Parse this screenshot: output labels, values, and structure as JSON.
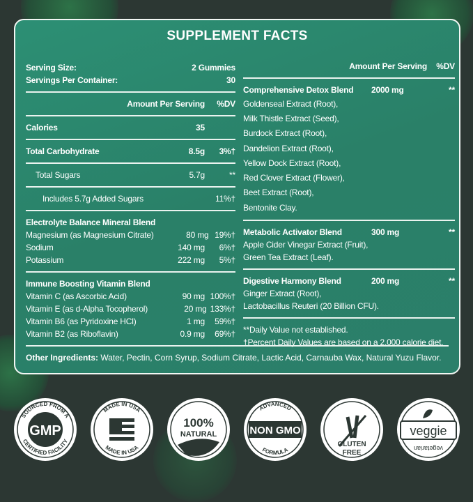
{
  "title": "SUPPLEMENT FACTS",
  "left": {
    "serving_size_label": "Serving Size:",
    "serving_size": "2 Gummies",
    "servings_label": "Servings Per Container:",
    "servings": "30",
    "header_amount": "Amount Per Serving",
    "header_dv": "%DV",
    "rows": [
      {
        "label": "Calories",
        "amount": "35",
        "dv": ""
      },
      {
        "label": "Total Carbohydrate",
        "amount": "8.5g",
        "dv": "3%†"
      },
      {
        "label": "Total Sugars",
        "amount": "5.7g",
        "dv": "**"
      },
      {
        "label": "Includes 5.7g Added Sugars",
        "amount": "",
        "dv": "11%†"
      }
    ],
    "electrolyte": {
      "title": "Electrolyte Balance Mineral Blend",
      "items": [
        {
          "label": "Magnesium (as Magnesium Citrate)",
          "amount": "80 mg",
          "dv": "19%†"
        },
        {
          "label": "Sodium",
          "amount": "140 mg",
          "dv": "6%†"
        },
        {
          "label": "Potassium",
          "amount": "222 mg",
          "dv": "5%†"
        }
      ]
    },
    "immune": {
      "title": "Immune Boosting Vitamin Blend",
      "items": [
        {
          "label": "Vitamin C (as Ascorbic Acid)",
          "amount": "90 mg",
          "dv": "100%†"
        },
        {
          "label": "Vitamin E (as d-Alpha Tocopherol)",
          "amount": "20 mg",
          "dv": "133%†"
        },
        {
          "label": "Vitamin B6 (as Pyridoxine HCl)",
          "amount": "1 mg",
          "dv": "59%†"
        },
        {
          "label": "Vitamin B2 (as Riboflavin)",
          "amount": "0.9 mg",
          "dv": "69%†"
        }
      ]
    }
  },
  "right": {
    "header_amount": "Amount Per Serving",
    "header_dv": "%DV",
    "detox": {
      "title": "Comprehensive Detox Blend",
      "amount": "2000 mg",
      "dv": "**",
      "items": [
        "Goldenseal Extract (Root),",
        "Milk Thistle Extract (Seed),",
        "Burdock Extract (Root),",
        "Dandelion Extract (Root),",
        "Yellow Dock Extract (Root),",
        "Red Clover Extract (Flower),",
        "Beet Extract (Root),",
        "Bentonite Clay."
      ]
    },
    "metabolic": {
      "title": "Metabolic Activator Blend",
      "amount": "300 mg",
      "dv": "**",
      "items": [
        "Apple Cider Vinegar Extract (Fruit),",
        "Green Tea Extract (Leaf)."
      ]
    },
    "digestive": {
      "title": "Digestive Harmony Blend",
      "amount": "200 mg",
      "dv": "**",
      "items": [
        "Ginger Extract (Root),",
        "Lactobacillus Reuteri (20 Billion CFU)."
      ]
    },
    "note1": "**Daily Value not established.",
    "note2": "†Percent Daily Values are based on a 2,000 calorie diet."
  },
  "other": {
    "label": "Other Ingredients:",
    "text": " Water, Pectin, Corn Syrup, Sodium Citrate, Lactic Acid, Carnauba Wax, Natural Yuzu Flavor."
  },
  "badges": [
    {
      "icon": "gmp-badge-icon",
      "top": "SOURCED FROM A",
      "main": "GMP",
      "bottom": "CERTIFIED FACILITY"
    },
    {
      "icon": "made-in-usa-badge-icon",
      "top": "MADE IN USA",
      "main": "",
      "bottom": "MADE IN USA"
    },
    {
      "icon": "natural-badge-icon",
      "top": "",
      "main": "100%",
      "bottom": "NATURAL"
    },
    {
      "icon": "non-gmo-badge-icon",
      "top": "ADVANCED",
      "main": "NON GMO",
      "bottom": "FORMULA"
    },
    {
      "icon": "gluten-free-badge-icon",
      "top": "",
      "main": "GLUTEN",
      "bottom": "FREE"
    },
    {
      "icon": "veggie-badge-icon",
      "top": "",
      "main": "veggie",
      "bottom": "vegetarian"
    }
  ],
  "colors": {
    "panel": "#2b8a70",
    "background": "#2c3733",
    "border": "#f2f7f4"
  }
}
